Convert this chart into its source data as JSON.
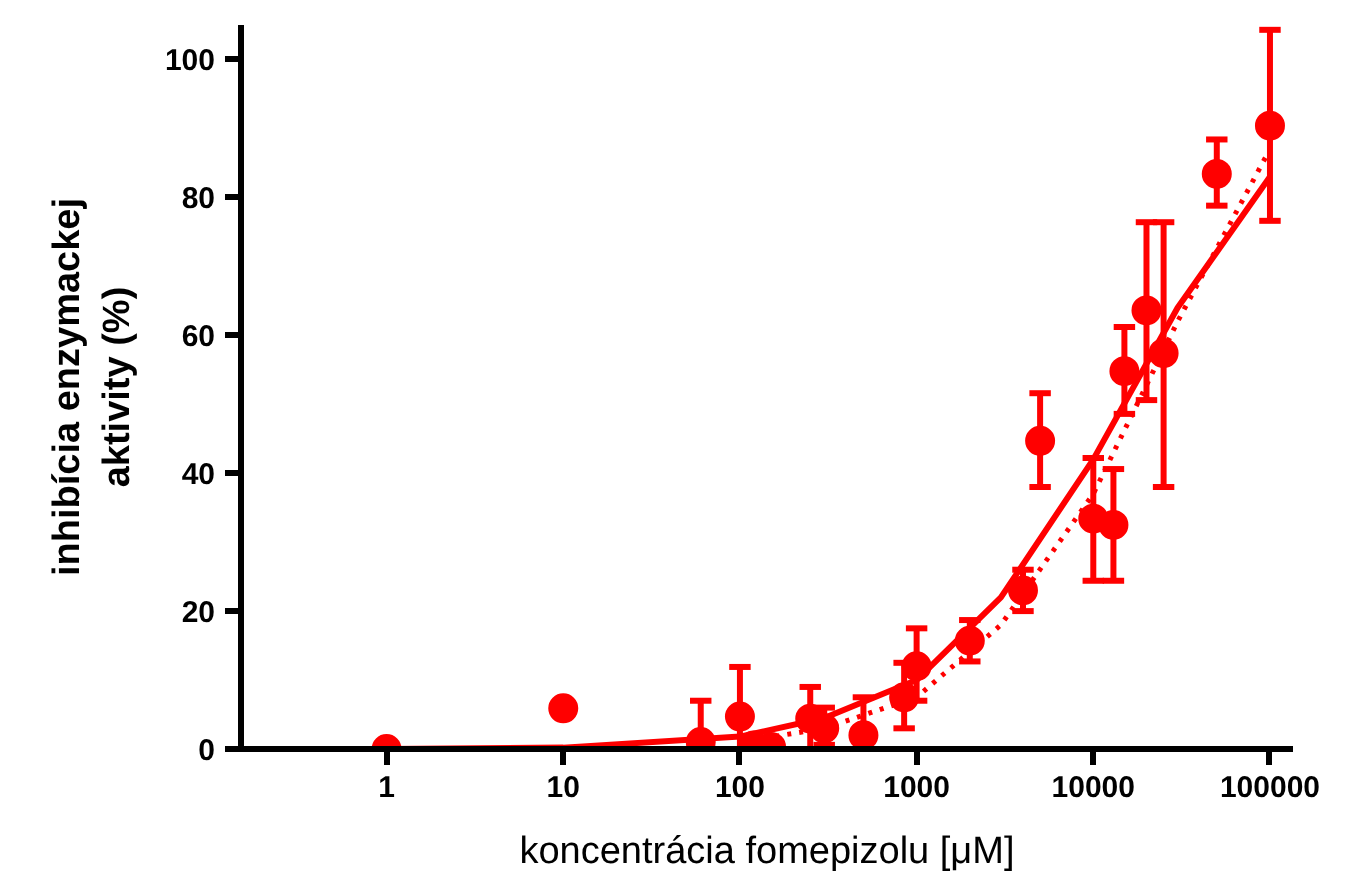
{
  "chart_data": {
    "type": "scatter",
    "xlabel": "koncentrácia fomepizolu [μM]",
    "ylabel": "inhibícia enzymackej\naktivity (%)",
    "log": "x",
    "xlim": [
      0.15,
      135000
    ],
    "ylim": [
      0,
      105
    ],
    "xticks": [
      1,
      10,
      100,
      1000,
      10000,
      100000
    ],
    "yticks": [
      0,
      20,
      40,
      60,
      80,
      100
    ],
    "grid": false,
    "marker": "circle",
    "series": [
      {
        "color": "#ff0000",
        "x": [
          1,
          10,
          60,
          100,
          120,
          150,
          250,
          300,
          500,
          850,
          1000,
          2000,
          4000,
          5000,
          10000,
          13000,
          15000,
          20000,
          25000,
          50000,
          100000
        ],
        "values": [
          0,
          5.9,
          1,
          4.7,
          0.5,
          0.3,
          4.4,
          3,
          2,
          7.5,
          12,
          15.7,
          23,
          44.7,
          33.4,
          32.5,
          54.8,
          63.6,
          57.4,
          83.4,
          90.4
        ],
        "errors": [
          null,
          null,
          [
            0,
            7
          ],
          [
            0,
            11.9
          ],
          null,
          null,
          [
            0,
            9
          ],
          [
            0.6,
            6
          ],
          [
            0,
            7.5
          ],
          [
            3,
            12.5
          ],
          [
            7,
            17.5
          ],
          [
            12.7,
            18.7
          ],
          [
            20,
            26
          ],
          [
            38,
            51.6
          ],
          [
            24.4,
            42.2
          ],
          [
            24.4,
            40.6
          ],
          [
            48.6,
            61.2
          ],
          [
            50.6,
            76.4
          ],
          [
            38,
            76.4
          ],
          [
            78.8,
            88.4
          ],
          [
            76.6,
            104.3
          ]
        ]
      },
      {
        "type": "line",
        "color": "#ff0000",
        "line_style": "solid",
        "marker": "none",
        "x": [
          0.15,
          1,
          10,
          100,
          300,
          1000,
          3000,
          10000,
          30000,
          100000
        ],
        "values": [
          0,
          0,
          0.2,
          1.8,
          4.5,
          10,
          22,
          42,
          64,
          83
        ]
      },
      {
        "type": "line",
        "color": "#ff0000",
        "line_style": "dotted",
        "marker": "none",
        "x": [
          100,
          300,
          1000,
          3000,
          10000,
          30000,
          100000
        ],
        "values": [
          1,
          3,
          7.5,
          18,
          37,
          62,
          87
        ]
      }
    ]
  }
}
